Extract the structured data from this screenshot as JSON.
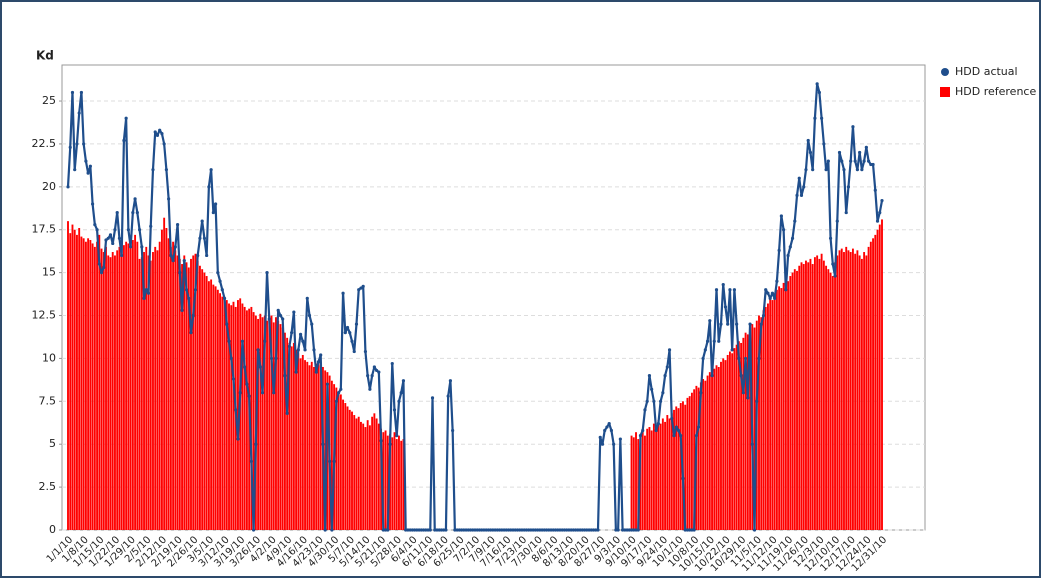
{
  "chart_data": {
    "type": "bar",
    "y_label": "Kd",
    "categories": [
      "1/1/10",
      null,
      null,
      null,
      null,
      null,
      null,
      "1/8/10",
      null,
      null,
      null,
      null,
      null,
      null,
      "1/15/10",
      null,
      null,
      null,
      null,
      null,
      null,
      "1/22/10",
      null,
      null,
      null,
      null,
      null,
      null,
      "1/29/10",
      null,
      null,
      null,
      null,
      null,
      null,
      "2/5/10",
      null,
      null,
      null,
      null,
      null,
      null,
      "2/12/10",
      null,
      null,
      null,
      null,
      null,
      null,
      "2/19/10",
      null,
      null,
      null,
      null,
      null,
      null,
      "2/26/10",
      null,
      null,
      null,
      null,
      null,
      null,
      "3/5/10",
      null,
      null,
      null,
      null,
      null,
      null,
      "3/12/10",
      null,
      null,
      null,
      null,
      null,
      null,
      "3/19/10",
      null,
      null,
      null,
      null,
      null,
      null,
      "3/26/10",
      null,
      null,
      null,
      null,
      null,
      null,
      "4/2/10",
      null,
      null,
      null,
      null,
      null,
      null,
      "4/9/10",
      null,
      null,
      null,
      null,
      null,
      null,
      "4/16/10",
      null,
      null,
      null,
      null,
      null,
      null,
      "4/23/10",
      null,
      null,
      null,
      null,
      null,
      null,
      "4/30/10",
      null,
      null,
      null,
      null,
      null,
      null,
      "5/7/10",
      null,
      null,
      null,
      null,
      null,
      null,
      "5/14/10",
      null,
      null,
      null,
      null,
      null,
      null,
      "5/21/10",
      null,
      null,
      null,
      null,
      null,
      null,
      "5/28/10",
      null,
      null,
      null,
      null,
      null,
      null,
      "6/4/10",
      null,
      null,
      null,
      null,
      null,
      null,
      "6/11/10",
      null,
      null,
      null,
      null,
      null,
      null,
      "6/18/10",
      null,
      null,
      null,
      null,
      null,
      null,
      "6/25/10",
      null,
      null,
      null,
      null,
      null,
      null,
      "7/2/10",
      null,
      null,
      null,
      null,
      null,
      null,
      "7/9/10",
      null,
      null,
      null,
      null,
      null,
      null,
      "7/16/10",
      null,
      null,
      null,
      null,
      null,
      null,
      "7/23/10",
      null,
      null,
      null,
      null,
      null,
      null,
      "7/30/10",
      null,
      null,
      null,
      null,
      null,
      null,
      "8/6/10",
      null,
      null,
      null,
      null,
      null,
      null,
      "8/13/10",
      null,
      null,
      null,
      null,
      null,
      null,
      "8/20/10",
      null,
      null,
      null,
      null,
      null,
      null,
      "8/27/10",
      null,
      null,
      null,
      null,
      null,
      null,
      "9/3/10",
      null,
      null,
      null,
      null,
      null,
      null,
      "9/10/10",
      null,
      null,
      null,
      null,
      null,
      null,
      "9/17/10",
      null,
      null,
      null,
      null,
      null,
      null,
      "9/24/10",
      null,
      null,
      null,
      null,
      null,
      null,
      "10/1/10",
      null,
      null,
      null,
      null,
      null,
      null,
      "10/8/10",
      null,
      null,
      null,
      null,
      null,
      null,
      "10/15/10",
      null,
      null,
      null,
      null,
      null,
      null,
      "10/22/10",
      null,
      null,
      null,
      null,
      null,
      null,
      "10/29/10",
      null,
      null,
      null,
      null,
      null,
      null,
      "11/5/10",
      null,
      null,
      null,
      null,
      null,
      null,
      "11/12/10",
      null,
      null,
      null,
      null,
      null,
      null,
      "11/19/10",
      null,
      null,
      null,
      null,
      null,
      null,
      "11/26/10",
      null,
      null,
      null,
      null,
      null,
      null,
      "12/3/10",
      null,
      null,
      null,
      null,
      null,
      null,
      "12/10/10",
      null,
      null,
      null,
      null,
      null,
      null,
      "12/17/10",
      null,
      null,
      null,
      null,
      null,
      null,
      "12/24/10",
      null,
      null,
      null,
      null,
      null,
      null,
      "12/31/10"
    ],
    "series": [
      {
        "name": "HDD actual",
        "type": "line",
        "color": "#1f4e8c",
        "values": [
          20,
          22.3,
          25.5,
          21,
          22.5,
          24.3,
          25.5,
          22.5,
          21.5,
          20.8,
          21.2,
          19,
          17.8,
          17.5,
          15.5,
          15,
          15.3,
          16.9,
          17,
          17.2,
          16.7,
          17.5,
          18.5,
          17,
          16,
          22.7,
          24,
          17.5,
          16.5,
          18.5,
          19.3,
          18.5,
          17.5,
          16.5,
          13.5,
          14,
          13.8,
          17.7,
          21,
          23.2,
          23,
          23.3,
          23.1,
          22.5,
          21,
          19.3,
          16,
          15.7,
          16.5,
          17.8,
          15,
          12.8,
          15.7,
          14,
          13.5,
          11.5,
          12.5,
          14,
          16,
          17,
          18,
          17,
          16,
          20,
          21,
          18.5,
          19,
          15,
          14.5,
          14,
          13.5,
          12,
          11,
          10,
          8.8,
          7,
          5.3,
          8,
          11,
          9.5,
          8.5,
          7.8,
          4,
          0,
          5,
          10.5,
          9.5,
          8,
          11,
          15,
          12.3,
          10,
          8,
          10,
          12.8,
          12.5,
          12.3,
          9,
          6.8,
          10.7,
          11.5,
          12.7,
          9.2,
          10.5,
          11.4,
          11,
          10.5,
          13.5,
          12.5,
          12,
          10.5,
          9.2,
          9.8,
          10.2,
          5,
          0,
          8.5,
          4,
          0,
          4,
          7.5,
          8,
          8.2,
          13.8,
          11.5,
          11.8,
          11.5,
          11,
          10.4,
          12,
          14,
          14.1,
          14.2,
          10.4,
          9,
          8.2,
          9,
          9.5,
          9.3,
          9.2,
          5.2,
          0,
          0,
          0,
          5,
          9.7,
          7,
          5.5,
          7.5,
          8,
          8.7,
          0,
          0,
          0,
          0,
          0,
          0,
          0,
          0,
          0,
          0,
          0,
          0,
          7.7,
          0,
          0,
          0,
          0,
          0,
          0,
          7.8,
          8.7,
          5.8,
          0,
          0,
          0,
          0,
          0,
          0,
          0,
          0,
          0,
          0,
          0,
          0,
          0,
          0,
          0,
          0,
          0,
          0,
          0,
          0,
          0,
          0,
          0,
          0,
          0,
          0,
          0,
          0,
          0,
          0,
          0,
          0,
          0,
          0,
          0,
          0,
          0,
          0,
          0,
          0,
          0,
          0,
          0,
          0,
          0,
          0,
          0,
          0,
          0,
          0,
          0,
          0,
          0,
          0,
          0,
          0,
          0,
          0,
          0,
          0,
          0,
          0,
          0,
          0,
          0,
          5.4,
          5,
          5.8,
          6,
          6.2,
          5.8,
          5,
          0,
          0,
          5.3,
          0,
          0,
          0,
          0,
          0,
          0,
          0,
          0,
          5.5,
          5.8,
          7,
          7.5,
          9,
          8.2,
          7.5,
          5.8,
          6.2,
          7.5,
          8,
          9,
          9.5,
          10.5,
          6.5,
          5.5,
          6,
          5.8,
          5.5,
          3,
          0,
          0,
          0,
          0,
          0,
          5.5,
          6,
          8,
          10,
          10.5,
          11,
          12.2,
          9,
          11,
          14,
          11,
          12,
          14.3,
          13,
          12,
          14,
          10.5,
          14,
          12,
          10,
          9,
          8,
          10,
          7.7,
          12,
          5,
          0,
          7.5,
          10,
          12,
          12.5,
          14,
          13.8,
          13.5,
          13.8,
          13.5,
          14.5,
          16.3,
          18.3,
          17.5,
          14,
          16,
          16.5,
          17,
          18,
          19.5,
          20.5,
          19.5,
          20,
          21,
          22.7,
          22,
          21,
          24,
          26,
          25.5,
          24,
          22.5,
          21,
          21.5,
          17,
          15.5,
          14.8,
          18,
          22,
          21.5,
          21,
          18.5,
          20,
          21.5,
          23.5,
          21.5,
          21,
          22,
          21,
          21.5,
          22.3,
          21.5,
          21.3,
          21.3,
          19.8,
          18,
          18.5,
          19.2
        ]
      },
      {
        "name": "HDD reference",
        "type": "bar",
        "color": "#ff0000",
        "values": [
          18,
          17.3,
          17.8,
          17.5,
          17.2,
          17.6,
          17.1,
          17,
          16.8,
          17,
          16.9,
          16.7,
          16.5,
          16.8,
          17.2,
          16.4,
          16.2,
          16.5,
          16,
          15.9,
          16.2,
          16,
          16.3,
          16.5,
          16.4,
          16.6,
          16.8,
          16.7,
          17,
          16.9,
          17.2,
          16.8,
          15.8,
          15.9,
          16.2,
          16.5,
          16,
          15.7,
          16.2,
          16.5,
          16.3,
          16.8,
          17.5,
          18.2,
          17.6,
          17,
          16.5,
          16.8,
          16.3,
          16,
          15.8,
          15.5,
          16,
          15.6,
          15.3,
          15.8,
          16,
          16.1,
          15.7,
          15.4,
          15.2,
          15,
          14.8,
          14.5,
          14.6,
          14.3,
          14.2,
          14,
          13.8,
          13.6,
          13.5,
          13.4,
          13.2,
          13.1,
          13.3,
          13,
          13.4,
          13.5,
          13.2,
          13,
          12.8,
          12.9,
          13,
          12.7,
          12.5,
          12.3,
          12.6,
          12.4,
          12.5,
          12.2,
          12.3,
          12.5,
          12.1,
          12.4,
          12.2,
          12,
          11.8,
          11.5,
          11.2,
          10.9,
          10.7,
          10.9,
          10.5,
          10.3,
          10,
          10.2,
          9.9,
          9.8,
          9.6,
          9.8,
          9.5,
          9.7,
          9.8,
          9.6,
          9.5,
          9.3,
          9.2,
          9,
          8.7,
          8.5,
          8.3,
          8,
          7.9,
          7.6,
          7.4,
          7.2,
          7,
          6.9,
          6.7,
          6.5,
          6.6,
          6.3,
          6.2,
          6,
          6.4,
          6.1,
          6.6,
          6.8,
          6.5,
          6.2,
          5.9,
          5.7,
          5.8,
          5.5,
          5.6,
          5.4,
          5.7,
          5.3,
          5.5,
          5.2,
          5.3,
          0,
          0,
          0,
          0,
          0,
          0,
          0,
          0,
          0,
          0,
          0,
          0,
          0,
          0,
          0,
          0,
          0,
          0,
          0,
          0,
          0,
          0,
          0,
          0,
          0,
          0,
          0,
          0,
          0,
          0,
          0,
          0,
          0,
          0,
          0,
          0,
          0,
          0,
          0,
          0,
          0,
          0,
          0,
          0,
          0,
          0,
          0,
          0,
          0,
          0,
          0,
          0,
          0,
          0,
          0,
          0,
          0,
          0,
          0,
          0,
          0,
          0,
          0,
          0,
          0,
          0,
          0,
          0,
          0,
          0,
          0,
          0,
          0,
          0,
          0,
          0,
          0,
          0,
          0,
          0,
          0,
          0,
          0,
          0,
          0,
          0,
          0,
          0,
          0,
          0,
          0,
          0,
          0,
          0,
          0,
          0,
          0,
          0,
          0,
          0,
          0,
          5.5,
          5.4,
          5.7,
          5.3,
          5.6,
          5.8,
          5.5,
          5.9,
          6,
          5.8,
          6.2,
          6.1,
          6.4,
          6.2,
          6.5,
          6.3,
          6.7,
          6.5,
          6.8,
          7,
          7.2,
          7.1,
          7.4,
          7.5,
          7.3,
          7.7,
          7.8,
          8,
          8.2,
          8.4,
          8.3,
          8.6,
          8.8,
          8.7,
          9,
          9.2,
          9.1,
          9.4,
          9.6,
          9.5,
          9.8,
          10,
          9.9,
          10.2,
          10.4,
          10.3,
          10.6,
          10.8,
          11,
          10.9,
          11.2,
          11.5,
          11.4,
          11.7,
          12,
          11.8,
          12.2,
          12.5,
          12.4,
          12.8,
          13,
          13.2,
          13.5,
          13.4,
          13.8,
          14,
          14.2,
          14.1,
          14.4,
          14.6,
          14.5,
          14.8,
          15,
          15.2,
          15.1,
          15.4,
          15.6,
          15.5,
          15.7,
          15.6,
          15.8,
          15.5,
          15.9,
          16,
          15.8,
          16.1,
          15.7,
          15.4,
          15.2,
          15,
          14.8,
          15.6,
          16,
          16.3,
          16.4,
          16.2,
          16.5,
          16.3,
          16.2,
          16.4,
          16.1,
          16.3,
          16,
          15.8,
          16.2,
          16,
          16.5,
          16.8,
          17,
          17.2,
          17.5,
          17.8,
          18.1
        ]
      }
    ],
    "ylim": [
      0,
      27.1
    ],
    "yticks": [
      0,
      2.5,
      5,
      7.5,
      10,
      12.5,
      15,
      17.5,
      20,
      22.5,
      25
    ],
    "grid": true,
    "legend": "right"
  }
}
